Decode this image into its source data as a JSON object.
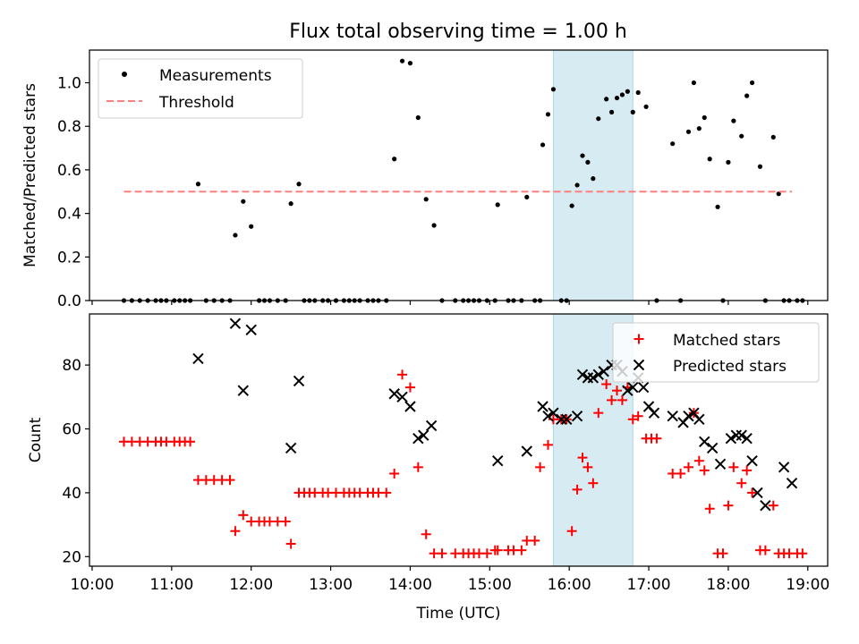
{
  "figure": {
    "title": "Flux total observing time = 1.00 h",
    "xlabel": "Time (UTC)"
  },
  "colors": {
    "measurement": "#000000",
    "threshold": "#ff7f7f",
    "matched": "#ff0000",
    "predicted": "#000000",
    "window_fill": "#add8e6"
  },
  "chart_data": [
    {
      "type": "scatter",
      "ylabel": "Matched/Predicted stars",
      "xlim": [
        "09:58",
        "19:15"
      ],
      "ylim": [
        0,
        1.15
      ],
      "yticks": [
        0.0,
        0.2,
        0.4,
        0.6,
        0.8,
        1.0
      ],
      "highlight_window": [
        "15:48",
        "16:48"
      ],
      "legend": [
        "Measurements",
        "Threshold"
      ],
      "legend_position": "upper left",
      "threshold": {
        "name": "Threshold",
        "y": 0.5,
        "x": [
          "10:24",
          "18:48"
        ]
      },
      "series": [
        {
          "name": "Measurements",
          "marker": "dot",
          "points": [
            [
              "10:24",
              0
            ],
            [
              "10:30",
              0
            ],
            [
              "10:36",
              0
            ],
            [
              "10:42",
              0
            ],
            [
              "10:48",
              0
            ],
            [
              "10:52",
              0
            ],
            [
              "10:56",
              0
            ],
            [
              "11:02",
              0
            ],
            [
              "11:06",
              0
            ],
            [
              "11:10",
              0
            ],
            [
              "11:14",
              0
            ],
            [
              "11:20",
              0.535
            ],
            [
              "11:26",
              0
            ],
            [
              "11:32",
              0
            ],
            [
              "11:38",
              0
            ],
            [
              "11:44",
              0
            ],
            [
              "11:48",
              0.3
            ],
            [
              "11:54",
              0.455
            ],
            [
              "12:00",
              0.34
            ],
            [
              "12:06",
              0
            ],
            [
              "12:10",
              0
            ],
            [
              "12:14",
              0
            ],
            [
              "12:20",
              0
            ],
            [
              "12:26",
              0
            ],
            [
              "12:30",
              0.445
            ],
            [
              "12:36",
              0.535
            ],
            [
              "12:40",
              0
            ],
            [
              "12:44",
              0
            ],
            [
              "12:48",
              0
            ],
            [
              "12:54",
              0
            ],
            [
              "12:58",
              0
            ],
            [
              "13:04",
              0
            ],
            [
              "13:10",
              0
            ],
            [
              "13:14",
              0
            ],
            [
              "13:18",
              0
            ],
            [
              "13:22",
              0
            ],
            [
              "13:28",
              0
            ],
            [
              "13:32",
              0
            ],
            [
              "13:36",
              0
            ],
            [
              "13:42",
              0
            ],
            [
              "13:48",
              0.65
            ],
            [
              "13:54",
              1.1
            ],
            [
              "14:00",
              1.09
            ],
            [
              "14:06",
              0.84
            ],
            [
              "14:12",
              0.465
            ],
            [
              "14:18",
              0.345
            ],
            [
              "14:24",
              0
            ],
            [
              "14:34",
              0
            ],
            [
              "14:40",
              0
            ],
            [
              "14:44",
              0
            ],
            [
              "14:48",
              0
            ],
            [
              "14:52",
              0
            ],
            [
              "14:58",
              0
            ],
            [
              "15:04",
              0
            ],
            [
              "15:06",
              0.44
            ],
            [
              "15:14",
              0
            ],
            [
              "15:18",
              0
            ],
            [
              "15:24",
              0
            ],
            [
              "15:28",
              0.475
            ],
            [
              "15:34",
              0
            ],
            [
              "15:38",
              0
            ],
            [
              "15:40",
              0.715
            ],
            [
              "15:44",
              0.855
            ],
            [
              "15:48",
              0.97
            ],
            [
              "15:54",
              0
            ],
            [
              "15:58",
              0
            ],
            [
              "16:02",
              0.435
            ],
            [
              "16:06",
              0.53
            ],
            [
              "16:10",
              0.665
            ],
            [
              "16:14",
              0.635
            ],
            [
              "16:18",
              0.56
            ],
            [
              "16:22",
              0.835
            ],
            [
              "16:28",
              0.925
            ],
            [
              "16:32",
              0.865
            ],
            [
              "16:36",
              0.93
            ],
            [
              "16:40",
              0.945
            ],
            [
              "16:44",
              0.96
            ],
            [
              "16:48",
              0.865
            ],
            [
              "16:52",
              0.955
            ],
            [
              "16:58",
              0.89
            ],
            [
              "17:06",
              0
            ],
            [
              "17:18",
              0.72
            ],
            [
              "17:24",
              0
            ],
            [
              "17:30",
              0.775
            ],
            [
              "17:34",
              1.0
            ],
            [
              "17:38",
              0.79
            ],
            [
              "17:42",
              0.84
            ],
            [
              "17:46",
              0.65
            ],
            [
              "17:52",
              0.43
            ],
            [
              "17:56",
              0
            ],
            [
              "18:00",
              0.635
            ],
            [
              "18:04",
              0.825
            ],
            [
              "18:10",
              0.755
            ],
            [
              "18:14",
              0.94
            ],
            [
              "18:18",
              1.0
            ],
            [
              "18:24",
              0.615
            ],
            [
              "18:28",
              0
            ],
            [
              "18:34",
              0.75
            ],
            [
              "18:38",
              0.49
            ],
            [
              "18:42",
              0
            ],
            [
              "18:46",
              0
            ],
            [
              "18:52",
              0
            ],
            [
              "18:56",
              0
            ]
          ]
        }
      ]
    },
    {
      "type": "scatter",
      "ylabel": "Count",
      "xlim": [
        "09:58",
        "19:15"
      ],
      "ylim": [
        17,
        96
      ],
      "yticks": [
        20,
        40,
        60,
        80
      ],
      "xticks": [
        "10:00",
        "11:00",
        "12:00",
        "13:00",
        "14:00",
        "15:00",
        "16:00",
        "17:00",
        "18:00",
        "19:00"
      ],
      "highlight_window": [
        "15:48",
        "16:48"
      ],
      "legend": [
        "Matched stars",
        "Predicted stars"
      ],
      "legend_position": "upper right",
      "series": [
        {
          "name": "Matched stars",
          "marker": "plus",
          "points": [
            [
              "10:24",
              56
            ],
            [
              "10:30",
              56
            ],
            [
              "10:36",
              56
            ],
            [
              "10:42",
              56
            ],
            [
              "10:48",
              56
            ],
            [
              "10:52",
              56
            ],
            [
              "10:56",
              56
            ],
            [
              "11:02",
              56
            ],
            [
              "11:06",
              56
            ],
            [
              "11:10",
              56
            ],
            [
              "11:14",
              56
            ],
            [
              "11:20",
              44
            ],
            [
              "11:26",
              44
            ],
            [
              "11:32",
              44
            ],
            [
              "11:38",
              44
            ],
            [
              "11:44",
              44
            ],
            [
              "11:48",
              28
            ],
            [
              "11:54",
              33
            ],
            [
              "12:00",
              31
            ],
            [
              "12:06",
              31
            ],
            [
              "12:10",
              31
            ],
            [
              "12:14",
              31
            ],
            [
              "12:20",
              31
            ],
            [
              "12:26",
              31
            ],
            [
              "12:30",
              24
            ],
            [
              "12:36",
              40
            ],
            [
              "12:40",
              40
            ],
            [
              "12:44",
              40
            ],
            [
              "12:48",
              40
            ],
            [
              "12:54",
              40
            ],
            [
              "12:58",
              40
            ],
            [
              "13:04",
              40
            ],
            [
              "13:10",
              40
            ],
            [
              "13:14",
              40
            ],
            [
              "13:18",
              40
            ],
            [
              "13:22",
              40
            ],
            [
              "13:28",
              40
            ],
            [
              "13:32",
              40
            ],
            [
              "13:36",
              40
            ],
            [
              "13:42",
              40
            ],
            [
              "13:48",
              46
            ],
            [
              "13:54",
              77
            ],
            [
              "14:00",
              73
            ],
            [
              "14:06",
              48
            ],
            [
              "14:12",
              27
            ],
            [
              "14:18",
              21
            ],
            [
              "14:24",
              21
            ],
            [
              "14:34",
              21
            ],
            [
              "14:40",
              21
            ],
            [
              "14:44",
              21
            ],
            [
              "14:48",
              21
            ],
            [
              "14:52",
              21
            ],
            [
              "14:58",
              21
            ],
            [
              "15:04",
              22
            ],
            [
              "15:06",
              22
            ],
            [
              "15:14",
              22
            ],
            [
              "15:18",
              22
            ],
            [
              "15:24",
              22
            ],
            [
              "15:28",
              25
            ],
            [
              "15:34",
              25
            ],
            [
              "15:38",
              48
            ],
            [
              "15:44",
              55
            ],
            [
              "15:48",
              63
            ],
            [
              "15:54",
              63
            ],
            [
              "15:58",
              63
            ],
            [
              "16:02",
              28
            ],
            [
              "16:06",
              41
            ],
            [
              "16:10",
              51
            ],
            [
              "16:14",
              48
            ],
            [
              "16:18",
              43
            ],
            [
              "16:22",
              65
            ],
            [
              "16:28",
              74
            ],
            [
              "16:32",
              69
            ],
            [
              "16:36",
              72
            ],
            [
              "16:40",
              69
            ],
            [
              "16:44",
              73
            ],
            [
              "16:48",
              63
            ],
            [
              "16:52",
              64
            ],
            [
              "16:58",
              57
            ],
            [
              "17:02",
              57
            ],
            [
              "17:06",
              57
            ],
            [
              "17:18",
              46
            ],
            [
              "17:24",
              46
            ],
            [
              "17:30",
              48
            ],
            [
              "17:34",
              65
            ],
            [
              "17:38",
              50
            ],
            [
              "17:42",
              47
            ],
            [
              "17:46",
              35
            ],
            [
              "17:52",
              21
            ],
            [
              "17:56",
              21
            ],
            [
              "18:00",
              36
            ],
            [
              "18:04",
              48
            ],
            [
              "18:10",
              43
            ],
            [
              "18:14",
              47
            ],
            [
              "18:18",
              40
            ],
            [
              "18:24",
              22
            ],
            [
              "18:28",
              22
            ],
            [
              "18:34",
              36
            ],
            [
              "18:38",
              21
            ],
            [
              "18:42",
              21
            ],
            [
              "18:46",
              21
            ],
            [
              "18:52",
              21
            ],
            [
              "18:56",
              21
            ]
          ]
        },
        {
          "name": "Predicted stars",
          "marker": "x",
          "points": [
            [
              "11:20",
              82
            ],
            [
              "11:48",
              93
            ],
            [
              "11:54",
              72
            ],
            [
              "12:00",
              91
            ],
            [
              "12:30",
              54
            ],
            [
              "12:36",
              75
            ],
            [
              "13:48",
              71
            ],
            [
              "13:54",
              70
            ],
            [
              "14:00",
              67
            ],
            [
              "14:06",
              57
            ],
            [
              "14:10",
              58
            ],
            [
              "14:16",
              61
            ],
            [
              "15:06",
              50
            ],
            [
              "15:28",
              53
            ],
            [
              "15:40",
              67
            ],
            [
              "15:44",
              64
            ],
            [
              "15:48",
              65
            ],
            [
              "15:54",
              63
            ],
            [
              "15:58",
              63
            ],
            [
              "16:06",
              64
            ],
            [
              "16:10",
              77
            ],
            [
              "16:14",
              76
            ],
            [
              "16:18",
              76
            ],
            [
              "16:22",
              77
            ],
            [
              "16:26",
              78
            ],
            [
              "16:32",
              80
            ],
            [
              "16:36",
              80
            ],
            [
              "16:40",
              78
            ],
            [
              "16:44",
              72
            ],
            [
              "16:48",
              73
            ],
            [
              "16:52",
              76
            ],
            [
              "16:56",
              73
            ],
            [
              "17:00",
              67
            ],
            [
              "17:04",
              65
            ],
            [
              "17:18",
              64
            ],
            [
              "17:26",
              62
            ],
            [
              "17:30",
              64
            ],
            [
              "17:34",
              65
            ],
            [
              "17:38",
              63
            ],
            [
              "17:42",
              56
            ],
            [
              "17:48",
              54
            ],
            [
              "17:54",
              49
            ],
            [
              "18:02",
              57
            ],
            [
              "18:06",
              58
            ],
            [
              "18:10",
              58
            ],
            [
              "18:14",
              57
            ],
            [
              "18:18",
              50
            ],
            [
              "18:22",
              40
            ],
            [
              "18:28",
              36
            ],
            [
              "18:42",
              48
            ],
            [
              "18:48",
              43
            ]
          ]
        }
      ]
    }
  ]
}
